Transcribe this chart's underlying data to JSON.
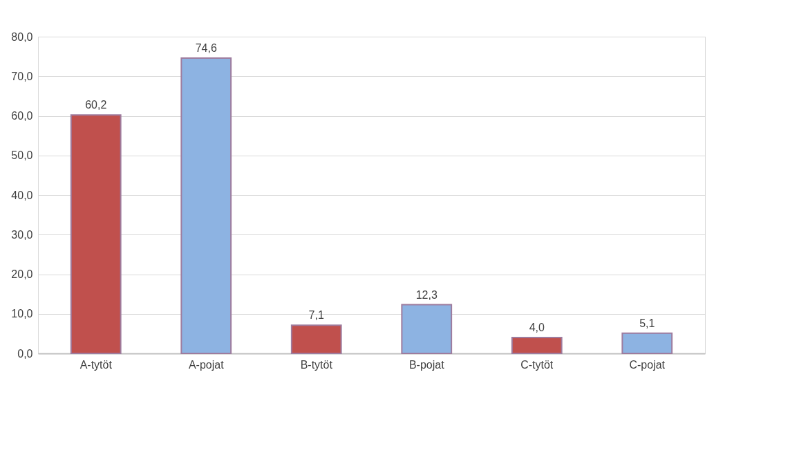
{
  "chart_data": {
    "type": "bar",
    "categories": [
      "A-tytöt",
      "A-pojat",
      "B-tytöt",
      "B-pojat",
      "C-tytöt",
      "C-pojat"
    ],
    "values": [
      60.2,
      74.6,
      7.1,
      12.3,
      4.0,
      5.1
    ],
    "value_labels": [
      "60,2",
      "74,6",
      "7,1",
      "12,3",
      "4,0",
      "5,1"
    ],
    "colors": [
      "#c0504d",
      "#8db3e2",
      "#c0504d",
      "#8db3e2",
      "#c0504d",
      "#8db3e2"
    ],
    "ylim": [
      0,
      80
    ],
    "yticks": [
      {
        "value": 0,
        "label": "0,0"
      },
      {
        "value": 10,
        "label": "10,0"
      },
      {
        "value": 20,
        "label": "20,0"
      },
      {
        "value": 30,
        "label": "30,0"
      },
      {
        "value": 40,
        "label": "40,0"
      },
      {
        "value": 50,
        "label": "50,0"
      },
      {
        "value": 60,
        "label": "60,0"
      },
      {
        "value": 70,
        "label": "70,0"
      },
      {
        "value": 80,
        "label": "80,0"
      }
    ],
    "grid": "y"
  }
}
